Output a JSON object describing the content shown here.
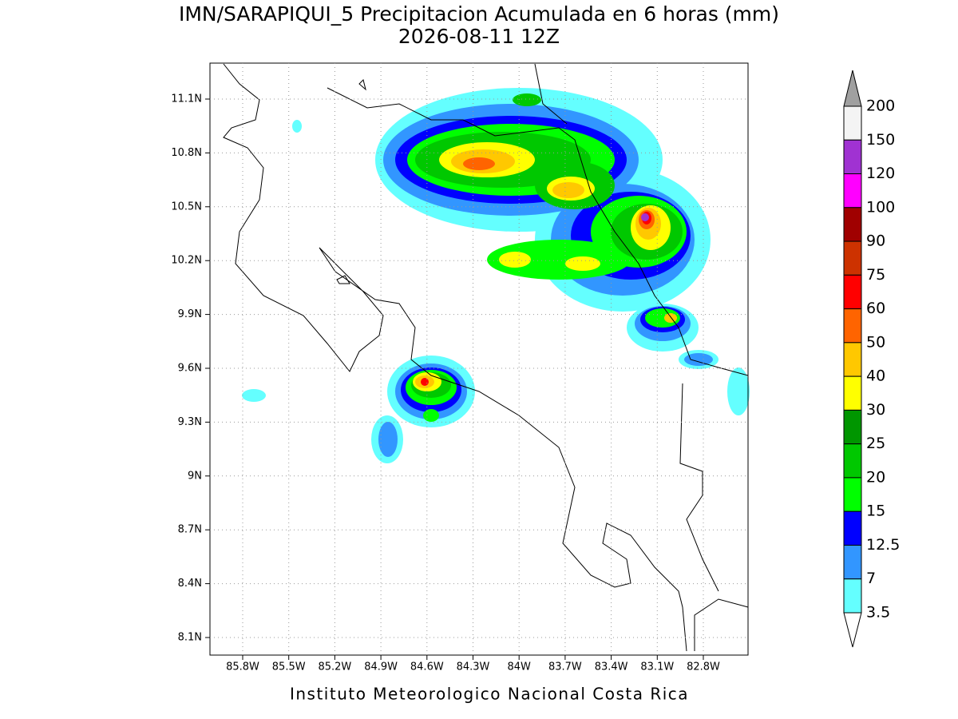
{
  "map": {
    "title": "IMN/SARAPIQUI_5 Precipitacion Acumulada en 6 horas (mm)",
    "subtitle": "2026-08-11 12Z",
    "footer": "Instituto Meteorologico Nacional Costa Rica",
    "lon_labels": [
      "85.8W",
      "85.5W",
      "85.2W",
      "84.9W",
      "84.6W",
      "84.3W",
      "84W",
      "83.7W",
      "83.4W",
      "83.1W",
      "82.8W"
    ],
    "lat_labels": [
      "11.1N",
      "10.8N",
      "10.5N",
      "10.2N",
      "9.9N",
      "9.6N",
      "9.3N",
      "9N",
      "8.7N",
      "8.4N",
      "8.1N"
    ],
    "colorbar": {
      "levels": [
        200,
        150,
        120,
        100,
        90,
        75,
        60,
        50,
        40,
        30,
        25,
        20,
        15,
        12.5,
        7,
        3.5
      ],
      "colors": [
        "#f4f4f4",
        "#a032d2",
        "#ff00ff",
        "#a00000",
        "#cd3200",
        "#ff0000",
        "#ff6400",
        "#ffc800",
        "#ffff00",
        "#009600",
        "#00c800",
        "#00ff00",
        "#0000ff",
        "#3296ff",
        "#64ffff"
      ],
      "over_color": "#a0a0a0",
      "under_color": "#ffffff"
    }
  }
}
